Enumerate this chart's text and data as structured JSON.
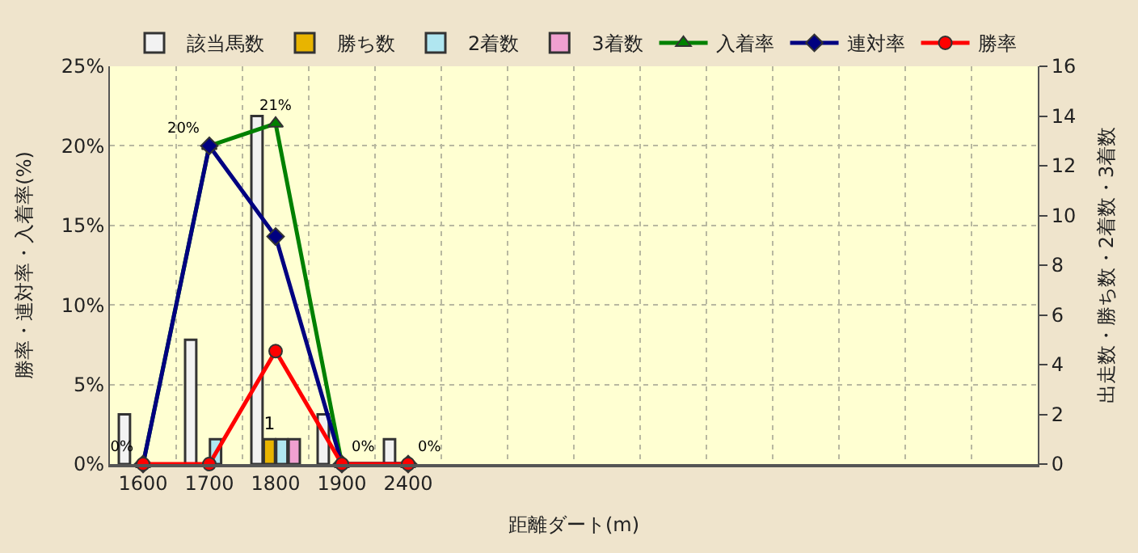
{
  "chart_data": {
    "type": "bar",
    "xlabel": "距離ダート(m)",
    "ylabel": "勝率・連対率・入着率(%)",
    "y2label": "出走数・勝ち数・2着数・3着数",
    "categories": [
      "1600",
      "1700",
      "1800",
      "1900",
      "2400",
      null,
      null,
      null,
      null,
      null,
      null,
      null,
      null,
      null
    ],
    "ylim": [
      0,
      25
    ],
    "yticks": [
      {
        "value": 0,
        "label": "0%"
      },
      {
        "value": 5,
        "label": "5%"
      },
      {
        "value": 10,
        "label": "10%"
      },
      {
        "value": 15,
        "label": "15%"
      },
      {
        "value": 20,
        "label": "20%"
      },
      {
        "value": 25,
        "label": "25%"
      }
    ],
    "y2lim": [
      0,
      16
    ],
    "y2ticks": [
      0,
      2,
      4,
      6,
      8,
      10,
      12,
      14,
      16
    ],
    "grid": true,
    "legend": "top",
    "series": [
      {
        "name": "該当馬数",
        "axis": "y2",
        "color": "#f2f2f2",
        "values": [
          2,
          5,
          14,
          2,
          1,
          null,
          null,
          null,
          null,
          null,
          null,
          null,
          null,
          null
        ]
      },
      {
        "name": "勝ち数",
        "axis": "y2",
        "color": "#e8b400",
        "values": [
          null,
          null,
          1,
          null,
          null,
          null,
          null,
          null,
          null,
          null,
          null,
          null,
          null,
          null
        ],
        "value_labels": [
          null,
          null,
          "1",
          null,
          null,
          null,
          null,
          null,
          null,
          null,
          null,
          null,
          null,
          null
        ]
      },
      {
        "name": "2着数",
        "axis": "y2",
        "color": "#b0e6f0",
        "values": [
          null,
          1,
          1,
          null,
          null,
          null,
          null,
          null,
          null,
          null,
          null,
          null,
          null,
          null
        ]
      },
      {
        "name": "3着数",
        "axis": "y2",
        "color": "#f0a0d0",
        "values": [
          null,
          null,
          1,
          null,
          null,
          null,
          null,
          null,
          null,
          null,
          null,
          null,
          null,
          null
        ]
      },
      {
        "name": "入着率",
        "type": "line",
        "color": "#008000",
        "marker": "triangle",
        "values": [
          0,
          20,
          21.4,
          0,
          0,
          null,
          null,
          null,
          null,
          null,
          null,
          null,
          null,
          null
        ],
        "value_labels": [
          "0%",
          "20%",
          "21%",
          "0%",
          "0%",
          null,
          null,
          null,
          null,
          null,
          null,
          null,
          null,
          null
        ]
      },
      {
        "name": "連対率",
        "type": "line",
        "color": "#000080",
        "marker": "diamond",
        "values": [
          0,
          20,
          14.3,
          0,
          0,
          null,
          null,
          null,
          null,
          null,
          null,
          null,
          null,
          null
        ]
      },
      {
        "name": "勝率",
        "type": "line",
        "color": "#ff0000",
        "marker": "circle",
        "values": [
          0,
          0,
          7.1,
          0,
          0,
          null,
          null,
          null,
          null,
          null,
          null,
          null,
          null,
          null
        ]
      }
    ]
  }
}
